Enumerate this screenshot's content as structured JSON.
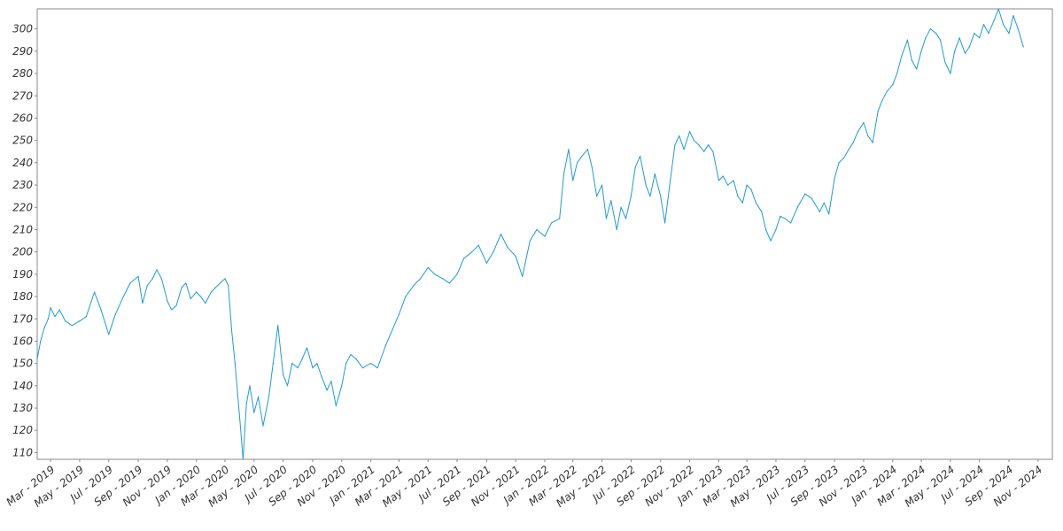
{
  "chart_data": {
    "type": "line",
    "title": "",
    "xlabel": "",
    "ylabel": "",
    "ylim": [
      107,
      309
    ],
    "xlim": [
      "2019-02-01",
      "2024-12-01"
    ],
    "grid": false,
    "legend": "none",
    "y_ticks": [
      110,
      120,
      130,
      140,
      150,
      160,
      170,
      180,
      190,
      200,
      210,
      220,
      230,
      240,
      250,
      260,
      270,
      280,
      290,
      300
    ],
    "x_tick_labels": [
      "Mar - 2019",
      "May - 2019",
      "Jul - 2019",
      "Sep - 2019",
      "Nov - 2019",
      "Jan - 2020",
      "Mar - 2020",
      "May - 2020",
      "Jul - 2020",
      "Sep - 2020",
      "Nov - 2020",
      "Jan - 2021",
      "Mar - 2021",
      "May - 2021",
      "Jul - 2021",
      "Sep - 2021",
      "Nov - 2021",
      "Jan - 2022",
      "Mar - 2022",
      "May - 2022",
      "Jul - 2022",
      "Sep - 2022",
      "Nov - 2022",
      "Jan - 2023",
      "Mar - 2023",
      "May - 2023",
      "Jul - 2023",
      "Sep - 2023",
      "Nov - 2023",
      "Jan - 2024",
      "Mar - 2024",
      "May - 2024",
      "Jul - 2024",
      "Sep - 2024",
      "Nov - 2024"
    ],
    "x_tick_dates": [
      "2019-03-01",
      "2019-05-01",
      "2019-07-01",
      "2019-09-01",
      "2019-11-01",
      "2020-01-01",
      "2020-03-01",
      "2020-05-01",
      "2020-07-01",
      "2020-09-01",
      "2020-11-01",
      "2021-01-01",
      "2021-03-01",
      "2021-05-01",
      "2021-07-01",
      "2021-09-01",
      "2021-11-01",
      "2022-01-01",
      "2022-03-01",
      "2022-05-01",
      "2022-07-01",
      "2022-09-01",
      "2022-11-01",
      "2023-01-01",
      "2023-03-01",
      "2023-05-01",
      "2023-07-01",
      "2023-09-01",
      "2023-11-01",
      "2024-01-01",
      "2024-03-01",
      "2024-05-01",
      "2024-07-01",
      "2024-09-01",
      "2024-11-01"
    ],
    "series": [
      {
        "color": "#1f9bd7",
        "points": [
          [
            "2019-02-01",
            152
          ],
          [
            "2019-02-08",
            160
          ],
          [
            "2019-02-16",
            166
          ],
          [
            "2019-02-24",
            170
          ],
          [
            "2019-03-01",
            175
          ],
          [
            "2019-03-10",
            171
          ],
          [
            "2019-03-20",
            174
          ],
          [
            "2019-04-01",
            169
          ],
          [
            "2019-04-15",
            167
          ],
          [
            "2019-05-01",
            169
          ],
          [
            "2019-05-15",
            171
          ],
          [
            "2019-06-01",
            182
          ],
          [
            "2019-06-15",
            174
          ],
          [
            "2019-07-01",
            163
          ],
          [
            "2019-07-15",
            172
          ],
          [
            "2019-08-01",
            180
          ],
          [
            "2019-08-15",
            186
          ],
          [
            "2019-09-01",
            189
          ],
          [
            "2019-09-10",
            177
          ],
          [
            "2019-09-20",
            185
          ],
          [
            "2019-10-01",
            188
          ],
          [
            "2019-10-10",
            192
          ],
          [
            "2019-10-20",
            188
          ],
          [
            "2019-11-01",
            178
          ],
          [
            "2019-11-10",
            174
          ],
          [
            "2019-11-20",
            176
          ],
          [
            "2019-12-01",
            184
          ],
          [
            "2019-12-10",
            186
          ],
          [
            "2019-12-20",
            179
          ],
          [
            "2020-01-01",
            182
          ],
          [
            "2020-01-10",
            180
          ],
          [
            "2020-01-20",
            177
          ],
          [
            "2020-02-01",
            182
          ],
          [
            "2020-02-10",
            184
          ],
          [
            "2020-02-20",
            186
          ],
          [
            "2020-03-01",
            188
          ],
          [
            "2020-03-08",
            185
          ],
          [
            "2020-03-15",
            165
          ],
          [
            "2020-03-22",
            150
          ],
          [
            "2020-04-01",
            125
          ],
          [
            "2020-04-08",
            107
          ],
          [
            "2020-04-15",
            132
          ],
          [
            "2020-04-22",
            140
          ],
          [
            "2020-05-01",
            128
          ],
          [
            "2020-05-10",
            135
          ],
          [
            "2020-05-20",
            122
          ],
          [
            "2020-06-01",
            135
          ],
          [
            "2020-06-10",
            150
          ],
          [
            "2020-06-20",
            167
          ],
          [
            "2020-07-01",
            145
          ],
          [
            "2020-07-10",
            140
          ],
          [
            "2020-07-20",
            150
          ],
          [
            "2020-08-01",
            148
          ],
          [
            "2020-08-10",
            152
          ],
          [
            "2020-08-20",
            157
          ],
          [
            "2020-09-01",
            148
          ],
          [
            "2020-09-10",
            150
          ],
          [
            "2020-09-20",
            144
          ],
          [
            "2020-10-01",
            138
          ],
          [
            "2020-10-10",
            142
          ],
          [
            "2020-10-20",
            131
          ],
          [
            "2020-11-01",
            140
          ],
          [
            "2020-11-10",
            150
          ],
          [
            "2020-11-20",
            154
          ],
          [
            "2020-12-01",
            152
          ],
          [
            "2020-12-15",
            148
          ],
          [
            "2021-01-01",
            150
          ],
          [
            "2021-01-15",
            148
          ],
          [
            "2021-02-01",
            158
          ],
          [
            "2021-02-15",
            165
          ],
          [
            "2021-03-01",
            172
          ],
          [
            "2021-03-15",
            180
          ],
          [
            "2021-04-01",
            185
          ],
          [
            "2021-04-15",
            188
          ],
          [
            "2021-05-01",
            193
          ],
          [
            "2021-05-15",
            190
          ],
          [
            "2021-06-01",
            188
          ],
          [
            "2021-06-15",
            186
          ],
          [
            "2021-07-01",
            190
          ],
          [
            "2021-07-15",
            197
          ],
          [
            "2021-08-01",
            200
          ],
          [
            "2021-08-15",
            203
          ],
          [
            "2021-09-01",
            195
          ],
          [
            "2021-09-15",
            200
          ],
          [
            "2021-10-01",
            208
          ],
          [
            "2021-10-15",
            202
          ],
          [
            "2021-11-01",
            198
          ],
          [
            "2021-11-15",
            189
          ],
          [
            "2021-12-01",
            205
          ],
          [
            "2021-12-15",
            210
          ],
          [
            "2022-01-01",
            207
          ],
          [
            "2022-01-15",
            213
          ],
          [
            "2022-02-01",
            215
          ],
          [
            "2022-02-10",
            235
          ],
          [
            "2022-02-20",
            246
          ],
          [
            "2022-03-01",
            232
          ],
          [
            "2022-03-10",
            240
          ],
          [
            "2022-03-20",
            243
          ],
          [
            "2022-04-01",
            246
          ],
          [
            "2022-04-10",
            238
          ],
          [
            "2022-04-20",
            225
          ],
          [
            "2022-05-01",
            230
          ],
          [
            "2022-05-10",
            215
          ],
          [
            "2022-05-20",
            223
          ],
          [
            "2022-06-01",
            210
          ],
          [
            "2022-06-10",
            220
          ],
          [
            "2022-06-20",
            215
          ],
          [
            "2022-07-01",
            225
          ],
          [
            "2022-07-10",
            238
          ],
          [
            "2022-07-20",
            243
          ],
          [
            "2022-08-01",
            230
          ],
          [
            "2022-08-10",
            225
          ],
          [
            "2022-08-20",
            235
          ],
          [
            "2022-09-01",
            225
          ],
          [
            "2022-09-10",
            213
          ],
          [
            "2022-09-20",
            230
          ],
          [
            "2022-10-01",
            248
          ],
          [
            "2022-10-10",
            252
          ],
          [
            "2022-10-20",
            246
          ],
          [
            "2022-11-01",
            254
          ],
          [
            "2022-11-10",
            250
          ],
          [
            "2022-11-20",
            248
          ],
          [
            "2022-12-01",
            245
          ],
          [
            "2022-12-10",
            248
          ],
          [
            "2022-12-20",
            245
          ],
          [
            "2023-01-01",
            232
          ],
          [
            "2023-01-10",
            234
          ],
          [
            "2023-01-20",
            230
          ],
          [
            "2023-02-01",
            232
          ],
          [
            "2023-02-10",
            225
          ],
          [
            "2023-02-20",
            222
          ],
          [
            "2023-03-01",
            230
          ],
          [
            "2023-03-10",
            228
          ],
          [
            "2023-03-20",
            222
          ],
          [
            "2023-04-01",
            218
          ],
          [
            "2023-04-10",
            210
          ],
          [
            "2023-04-20",
            205
          ],
          [
            "2023-05-01",
            210
          ],
          [
            "2023-05-10",
            216
          ],
          [
            "2023-05-20",
            215
          ],
          [
            "2023-06-01",
            213
          ],
          [
            "2023-06-15",
            220
          ],
          [
            "2023-07-01",
            226
          ],
          [
            "2023-07-15",
            224
          ],
          [
            "2023-08-01",
            218
          ],
          [
            "2023-08-10",
            222
          ],
          [
            "2023-08-20",
            217
          ],
          [
            "2023-09-01",
            233
          ],
          [
            "2023-09-10",
            240
          ],
          [
            "2023-09-20",
            242
          ],
          [
            "2023-10-01",
            246
          ],
          [
            "2023-10-10",
            249
          ],
          [
            "2023-10-20",
            254
          ],
          [
            "2023-11-01",
            258
          ],
          [
            "2023-11-10",
            252
          ],
          [
            "2023-11-20",
            249
          ],
          [
            "2023-12-01",
            263
          ],
          [
            "2023-12-10",
            268
          ],
          [
            "2023-12-20",
            272
          ],
          [
            "2024-01-01",
            275
          ],
          [
            "2024-01-10",
            280
          ],
          [
            "2024-01-20",
            288
          ],
          [
            "2024-02-01",
            295
          ],
          [
            "2024-02-10",
            286
          ],
          [
            "2024-02-20",
            282
          ],
          [
            "2024-03-01",
            290
          ],
          [
            "2024-03-10",
            296
          ],
          [
            "2024-03-20",
            300
          ],
          [
            "2024-04-01",
            298
          ],
          [
            "2024-04-10",
            295
          ],
          [
            "2024-04-20",
            285
          ],
          [
            "2024-05-01",
            280
          ],
          [
            "2024-05-10",
            290
          ],
          [
            "2024-05-20",
            296
          ],
          [
            "2024-06-01",
            289
          ],
          [
            "2024-06-10",
            292
          ],
          [
            "2024-06-20",
            298
          ],
          [
            "2024-07-01",
            296
          ],
          [
            "2024-07-10",
            302
          ],
          [
            "2024-07-20",
            298
          ],
          [
            "2024-08-01",
            304
          ],
          [
            "2024-08-10",
            309
          ],
          [
            "2024-08-20",
            302
          ],
          [
            "2024-09-01",
            298
          ],
          [
            "2024-09-10",
            306
          ],
          [
            "2024-09-20",
            300
          ],
          [
            "2024-10-01",
            292
          ]
        ]
      }
    ]
  }
}
